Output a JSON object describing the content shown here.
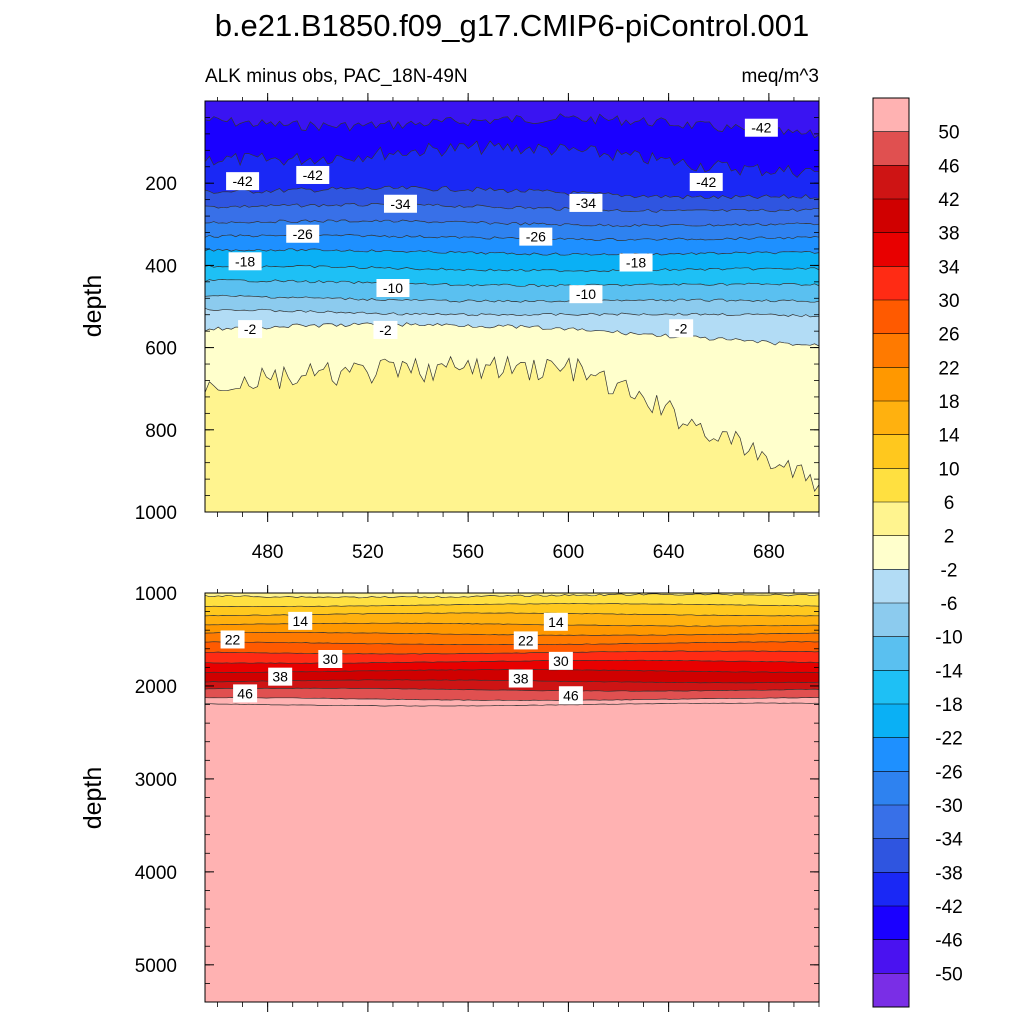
{
  "chart_data": {
    "type": "contour",
    "title": "b.e21.B1850.f09_g17.CMIP6-piControl.001",
    "subtitle_left": "ALK minus obs, PAC_18N-49N",
    "subtitle_right": "meq/m^3",
    "ylabel": "depth",
    "x_ticks": [
      480,
      520,
      560,
      600,
      640,
      680
    ],
    "x_range": [
      455,
      700
    ],
    "colorbar": {
      "levels": [
        "-50",
        "-46",
        "-42",
        "-38",
        "-34",
        "-30",
        "-26",
        "-22",
        "-18",
        "-14",
        "-10",
        "-6",
        "-2",
        "2",
        "6",
        "10",
        "14",
        "18",
        "22",
        "26",
        "30",
        "34",
        "38",
        "42",
        "46",
        "50"
      ],
      "colors": [
        "#7a2ee6",
        "#4a12f0",
        "#1a00ff",
        "#1a28f5",
        "#2f55e0",
        "#3870e8",
        "#2e82f0",
        "#1e90ff",
        "#0ab0f5",
        "#1ec0f5",
        "#5ac0f0",
        "#8ccbee",
        "#b2dcf5",
        "#ffffcc",
        "#fff48f",
        "#ffe040",
        "#ffc81e",
        "#ffb10f",
        "#ff9800",
        "#ff7a00",
        "#ff5a00",
        "#ff2b14",
        "#e80000",
        "#d00000",
        "#ce1414",
        "#e05050",
        "#ffb2b2"
      ]
    },
    "panels": [
      {
        "name": "upper",
        "y_range": [
          0,
          1000
        ],
        "y_ticks": [
          200,
          400,
          600,
          800,
          1000
        ],
        "contour_labels": [
          {
            "text": "-42",
            "x": 470,
            "y": 195
          },
          {
            "text": "-42",
            "x": 498,
            "y": 180
          },
          {
            "text": "-42",
            "x": 677,
            "y": 65
          },
          {
            "text": "-42",
            "x": 655,
            "y": 197
          },
          {
            "text": "-34",
            "x": 533,
            "y": 250
          },
          {
            "text": "-34",
            "x": 607,
            "y": 248
          },
          {
            "text": "-26",
            "x": 494,
            "y": 323
          },
          {
            "text": "-26",
            "x": 587,
            "y": 330
          },
          {
            "text": "-18",
            "x": 471,
            "y": 390
          },
          {
            "text": "-18",
            "x": 627,
            "y": 393
          },
          {
            "text": "-10",
            "x": 530,
            "y": 455
          },
          {
            "text": "-10",
            "x": 607,
            "y": 470
          },
          {
            "text": "-2",
            "x": 473,
            "y": 555
          },
          {
            "text": "-2",
            "x": 527,
            "y": 557
          },
          {
            "text": "-2",
            "x": 645,
            "y": 553
          }
        ]
      },
      {
        "name": "lower",
        "y_range": [
          1000,
          5400
        ],
        "y_ticks": [
          1000,
          2000,
          3000,
          4000,
          5000
        ],
        "contour_labels": [
          {
            "text": "14",
            "x": 493,
            "y": 1300
          },
          {
            "text": "14",
            "x": 595,
            "y": 1310
          },
          {
            "text": "22",
            "x": 466,
            "y": 1500
          },
          {
            "text": "22",
            "x": 583,
            "y": 1510
          },
          {
            "text": "30",
            "x": 505,
            "y": 1710
          },
          {
            "text": "30",
            "x": 597,
            "y": 1730
          },
          {
            "text": "38",
            "x": 485,
            "y": 1900
          },
          {
            "text": "38",
            "x": 581,
            "y": 1920
          },
          {
            "text": "46",
            "x": 471,
            "y": 2080
          },
          {
            "text": "46",
            "x": 601,
            "y": 2100
          }
        ]
      }
    ]
  }
}
